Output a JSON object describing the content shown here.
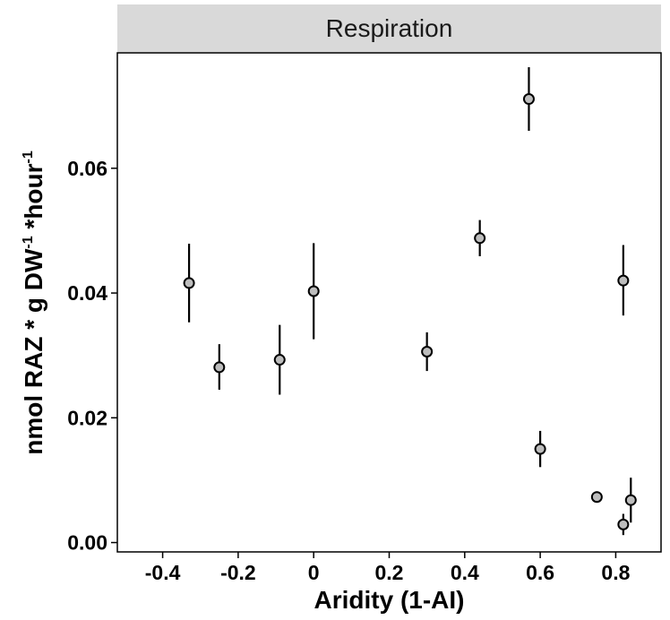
{
  "chart_data": {
    "type": "scatter",
    "title": "",
    "facet_label": "Respiration",
    "xlabel": "Aridity (1-AI)",
    "ylabel": {
      "parts": [
        "nmol RAZ * g DW",
        "-1",
        " *hour",
        "-1"
      ]
    },
    "xlim": [
      -0.52,
      0.92
    ],
    "ylim": [
      -0.0015,
      0.0785
    ],
    "x_ticks": [
      -0.4,
      -0.2,
      0,
      0.2,
      0.4,
      0.6,
      0.8
    ],
    "x_tick_labels": [
      "-0.4",
      "-0.2",
      "0",
      "0.2",
      "0.4",
      "0.6",
      "0.8"
    ],
    "y_ticks": [
      0.0,
      0.02,
      0.04,
      0.06
    ],
    "y_tick_labels": [
      "0.00",
      "0.02",
      "0.04",
      "0.06"
    ],
    "grid": false,
    "error_bars": true,
    "points": [
      {
        "x": -0.33,
        "y": 0.0416,
        "ylo": 0.0353,
        "yhi": 0.0479
      },
      {
        "x": -0.25,
        "y": 0.0281,
        "ylo": 0.0245,
        "yhi": 0.0318
      },
      {
        "x": -0.09,
        "y": 0.0293,
        "ylo": 0.0237,
        "yhi": 0.0349
      },
      {
        "x": 0.0,
        "y": 0.0403,
        "ylo": 0.0326,
        "yhi": 0.048
      },
      {
        "x": 0.3,
        "y": 0.0306,
        "ylo": 0.0275,
        "yhi": 0.0337
      },
      {
        "x": 0.44,
        "y": 0.0488,
        "ylo": 0.0459,
        "yhi": 0.0517
      },
      {
        "x": 0.57,
        "y": 0.0711,
        "ylo": 0.066,
        "yhi": 0.0762
      },
      {
        "x": 0.6,
        "y": 0.015,
        "ylo": 0.0121,
        "yhi": 0.0179
      },
      {
        "x": 0.75,
        "y": 0.0073,
        "ylo": 0.0064,
        "yhi": 0.0082
      },
      {
        "x": 0.82,
        "y": 0.042,
        "ylo": 0.0364,
        "yhi": 0.0477
      },
      {
        "x": 0.82,
        "y": 0.0029,
        "ylo": 0.0012,
        "yhi": 0.0046
      },
      {
        "x": 0.84,
        "y": 0.0068,
        "ylo": 0.0032,
        "yhi": 0.0104
      }
    ],
    "colors": {
      "point_fill": "#bdbdbd",
      "point_stroke": "#000000",
      "error_bar": "#000000",
      "facet_strip": "#d9d9d9",
      "panel_border": "#000000"
    }
  }
}
